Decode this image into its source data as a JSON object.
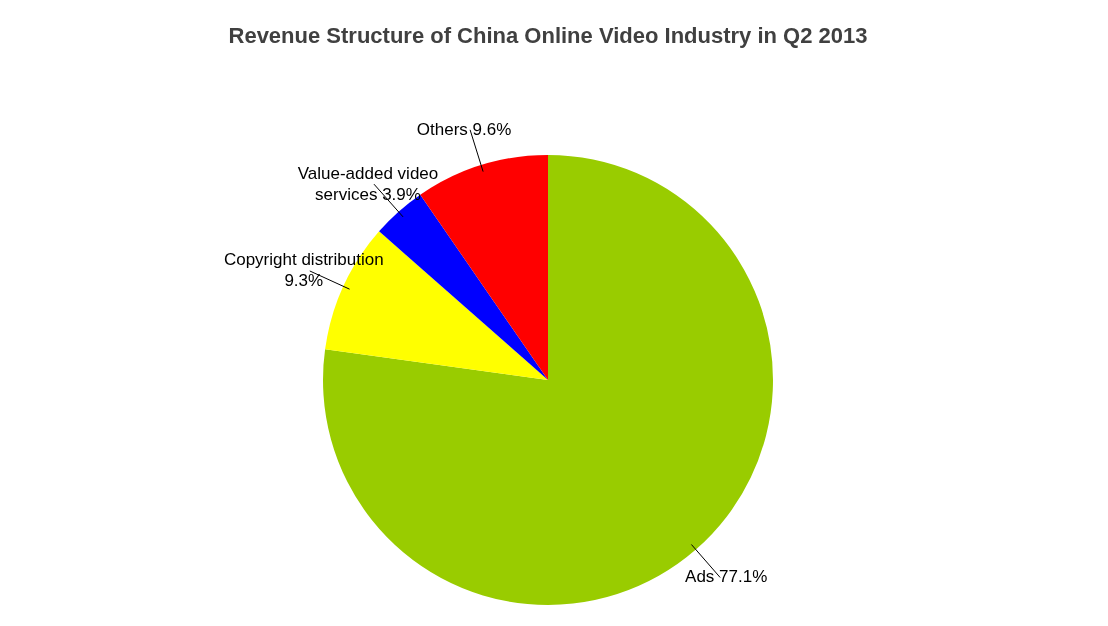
{
  "chart_data": {
    "type": "pie",
    "title": "Revenue Structure of China Online Video Industry in Q2 2013",
    "categories": [
      "Ads",
      "Copyright distribution",
      "Value-added video services",
      "Others"
    ],
    "values": [
      77.1,
      9.3,
      3.9,
      9.6
    ],
    "colors": [
      "#99cc00",
      "#ffff00",
      "#0000ff",
      "#ff0000"
    ],
    "value_labels": [
      "77.1%",
      "9.3%",
      "3.9%",
      "9.6%"
    ],
    "legend": false
  }
}
